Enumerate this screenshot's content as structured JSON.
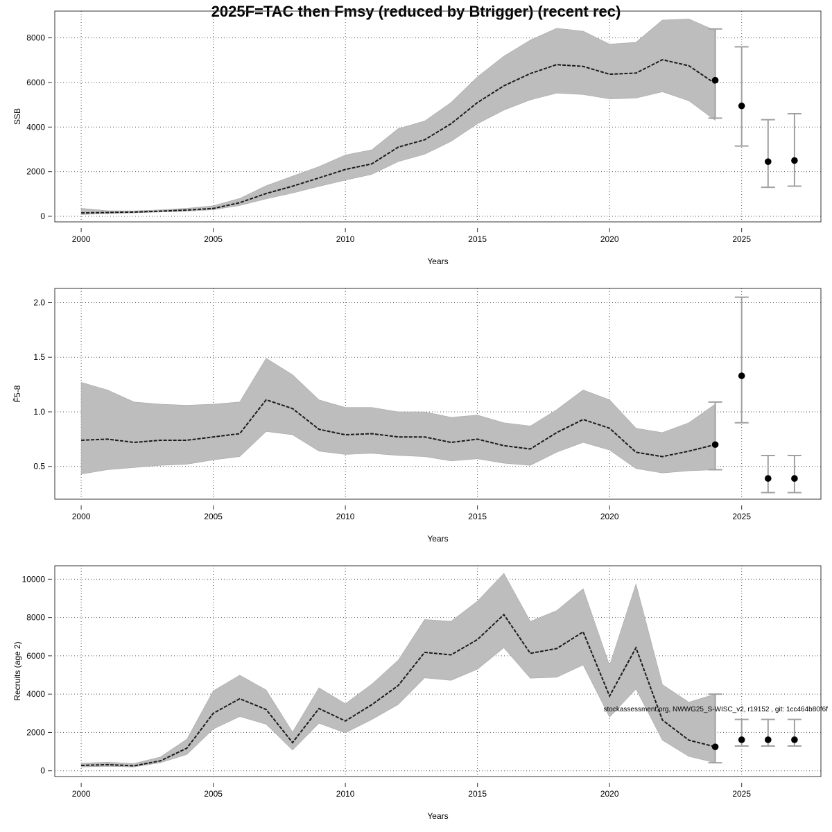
{
  "chart_data": {
    "title": "2025F=TAC then Fmsy (reduced by Btrigger) (recent rec)",
    "footnote": "stockassessment.org, NWWG25_S-WISC_v2, r19152 , git: 1cc464b80f6f",
    "type": "line",
    "panels": [
      {
        "id": "ssb",
        "ylabel": "SSB",
        "xlabel": "Years",
        "xlim": [
          1999,
          2028
        ],
        "ylim": [
          -250,
          9200
        ],
        "xticks": [
          2000,
          2005,
          2010,
          2015,
          2020,
          2025
        ],
        "yticks": [
          0,
          2000,
          4000,
          6000,
          8000
        ],
        "grid": true,
        "historical": {
          "years": [
            2000,
            2001,
            2002,
            2003,
            2004,
            2005,
            2006,
            2007,
            2008,
            2009,
            2010,
            2011,
            2012,
            2013,
            2014,
            2015,
            2016,
            2017,
            2018,
            2019,
            2020,
            2021,
            2022,
            2023,
            2024
          ],
          "estimate": [
            150,
            170,
            190,
            230,
            280,
            350,
            610,
            1020,
            1350,
            1720,
            2100,
            2350,
            3100,
            3430,
            4150,
            5100,
            5850,
            6400,
            6800,
            6720,
            6370,
            6420,
            7020,
            6750,
            5950
          ],
          "lower": [
            80,
            120,
            150,
            190,
            230,
            290,
            480,
            780,
            1040,
            1340,
            1620,
            1880,
            2450,
            2780,
            3360,
            4150,
            4760,
            5220,
            5520,
            5460,
            5260,
            5300,
            5580,
            5180,
            4300
          ],
          "upper": [
            360,
            250,
            240,
            290,
            360,
            470,
            800,
            1370,
            1800,
            2230,
            2750,
            2980,
            3930,
            4270,
            5100,
            6250,
            7180,
            7900,
            8430,
            8300,
            7720,
            7800,
            8800,
            8850,
            8330
          ]
        },
        "projection": {
          "years": [
            2024,
            2025,
            2026,
            2027
          ],
          "median": [
            6100,
            4950,
            2450,
            2500
          ],
          "lower": [
            4400,
            3150,
            1300,
            1350
          ],
          "upper": [
            8400,
            7600,
            4330,
            4600
          ]
        }
      },
      {
        "id": "fbar",
        "ylabel": "F̄5-8",
        "xlabel": "Years",
        "xlim": [
          1999,
          2028
        ],
        "ylim": [
          0.2,
          2.13
        ],
        "xticks": [
          2000,
          2005,
          2010,
          2015,
          2020,
          2025
        ],
        "yticks": [
          0.5,
          1.0,
          1.5,
          2.0
        ],
        "grid": true,
        "historical": {
          "years": [
            2000,
            2001,
            2002,
            2003,
            2004,
            2005,
            2006,
            2007,
            2008,
            2009,
            2010,
            2011,
            2012,
            2013,
            2014,
            2015,
            2016,
            2017,
            2018,
            2019,
            2020,
            2021,
            2022,
            2023,
            2024
          ],
          "estimate": [
            0.74,
            0.75,
            0.72,
            0.74,
            0.74,
            0.77,
            0.8,
            1.11,
            1.03,
            0.84,
            0.79,
            0.8,
            0.77,
            0.77,
            0.72,
            0.75,
            0.69,
            0.66,
            0.81,
            0.93,
            0.85,
            0.63,
            0.59,
            0.64,
            0.7
          ],
          "lower": [
            0.43,
            0.47,
            0.49,
            0.51,
            0.52,
            0.56,
            0.59,
            0.82,
            0.79,
            0.64,
            0.61,
            0.62,
            0.6,
            0.59,
            0.55,
            0.57,
            0.53,
            0.51,
            0.63,
            0.72,
            0.65,
            0.48,
            0.44,
            0.46,
            0.47
          ],
          "upper": [
            1.27,
            1.2,
            1.09,
            1.07,
            1.06,
            1.07,
            1.09,
            1.49,
            1.34,
            1.11,
            1.04,
            1.04,
            1.0,
            1.0,
            0.95,
            0.97,
            0.9,
            0.87,
            1.02,
            1.2,
            1.11,
            0.85,
            0.81,
            0.9,
            1.07
          ]
        },
        "projection": {
          "years": [
            2024,
            2025,
            2026,
            2027
          ],
          "median": [
            0.7,
            1.33,
            0.39,
            0.39
          ],
          "lower": [
            0.47,
            0.9,
            0.26,
            0.26
          ],
          "upper": [
            1.09,
            2.05,
            0.6,
            0.6
          ]
        }
      },
      {
        "id": "recruits",
        "ylabel": "Recruits (age 2)",
        "xlabel": "Years",
        "xlim": [
          1999,
          2028
        ],
        "ylim": [
          -300,
          10700
        ],
        "xticks": [
          2000,
          2005,
          2010,
          2015,
          2020,
          2025
        ],
        "yticks": [
          0,
          2000,
          4000,
          6000,
          8000,
          10000
        ],
        "grid": true,
        "historical": {
          "years": [
            2000,
            2001,
            2002,
            2003,
            2004,
            2005,
            2006,
            2007,
            2008,
            2009,
            2010,
            2011,
            2012,
            2013,
            2014,
            2015,
            2016,
            2017,
            2018,
            2019,
            2020,
            2021,
            2022,
            2023,
            2024
          ],
          "estimate": [
            280,
            320,
            260,
            520,
            1180,
            3000,
            3760,
            3200,
            1470,
            3250,
            2600,
            3450,
            4450,
            6180,
            6050,
            6850,
            8150,
            6130,
            6380,
            7250,
            3900,
            6420,
            2650,
            1600,
            1250
          ],
          "lower": [
            200,
            230,
            200,
            420,
            850,
            2180,
            2830,
            2430,
            1080,
            2480,
            1980,
            2670,
            3460,
            4850,
            4720,
            5300,
            6420,
            4830,
            4880,
            5520,
            2800,
            4270,
            1600,
            750,
            420
          ],
          "upper": [
            400,
            450,
            380,
            720,
            1650,
            4170,
            4990,
            4220,
            2020,
            4330,
            3500,
            4520,
            5770,
            7900,
            7800,
            8850,
            10300,
            7800,
            8360,
            9500,
            5500,
            9750,
            4500,
            3580,
            4000
          ]
        },
        "projection": {
          "years": [
            2024,
            2025,
            2026,
            2027
          ],
          "median": [
            1250,
            1620,
            1620,
            1620
          ],
          "lower": [
            420,
            1290,
            1290,
            1290
          ],
          "upper": [
            4000,
            2680,
            2680,
            2680
          ]
        }
      }
    ]
  }
}
